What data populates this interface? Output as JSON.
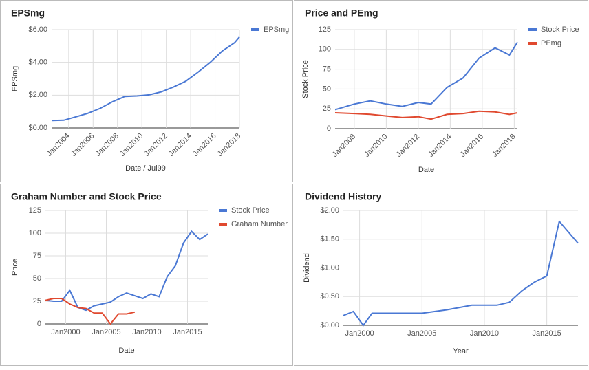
{
  "chart_data": [
    {
      "type": "line",
      "title": "EPSmg",
      "ylabel": "EPSmg",
      "xlabel": "Date / Jul99",
      "grid": true,
      "legend": "right",
      "xlim": [
        2002.6,
        2018
      ],
      "ylim": [
        0,
        6
      ],
      "xticks": [
        {
          "value": 2004,
          "label": "Jan2004"
        },
        {
          "value": 2006,
          "label": "Jan2006"
        },
        {
          "value": 2008,
          "label": "Jan2008"
        },
        {
          "value": 2010,
          "label": "Jan2010"
        },
        {
          "value": 2012,
          "label": "Jan2012"
        },
        {
          "value": 2014,
          "label": "Jan2014"
        },
        {
          "value": 2016,
          "label": "Jan2016"
        },
        {
          "value": 2018,
          "label": "Jan2018"
        }
      ],
      "yticks": [
        {
          "value": 0,
          "label": "$0.00"
        },
        {
          "value": 2,
          "label": "$2.00"
        },
        {
          "value": 4,
          "label": "$4.00"
        },
        {
          "value": 6,
          "label": "$6.00"
        }
      ],
      "series": [
        {
          "name": "EPSmg",
          "color": "#4a78d4",
          "x": [
            2002.6,
            2003.6,
            2004.6,
            2005.6,
            2006.6,
            2007.6,
            2008.6,
            2009.6,
            2010.6,
            2011.6,
            2012.6,
            2013.6,
            2014.6,
            2015.6,
            2016.6,
            2017.6,
            2018
          ],
          "values": [
            0.45,
            0.47,
            0.68,
            0.9,
            1.2,
            1.6,
            1.92,
            1.95,
            2.02,
            2.2,
            2.5,
            2.85,
            3.4,
            4.0,
            4.7,
            5.2,
            5.55
          ]
        }
      ]
    },
    {
      "type": "line",
      "title": "Price and PEmg",
      "ylabel": "Stock Price",
      "xlabel": "Date",
      "grid": true,
      "legend": "right",
      "xlim": [
        2006.8,
        2018.2
      ],
      "ylim": [
        0,
        125
      ],
      "xticks": [
        {
          "value": 2008,
          "label": "Jan2008"
        },
        {
          "value": 2010,
          "label": "Jan2010"
        },
        {
          "value": 2012,
          "label": "Jan2012"
        },
        {
          "value": 2014,
          "label": "Jan2014"
        },
        {
          "value": 2016,
          "label": "Jan2016"
        },
        {
          "value": 2018,
          "label": "Jan2018"
        }
      ],
      "yticks": [
        0,
        25,
        50,
        75,
        100,
        125
      ],
      "series": [
        {
          "name": "Stock Price",
          "color": "#4a78d4",
          "x": [
            2006.8,
            2008,
            2009,
            2010,
            2011,
            2012,
            2012.8,
            2013.8,
            2014.8,
            2015.8,
            2016.8,
            2017.7,
            2018.2
          ],
          "values": [
            24,
            31,
            35,
            31,
            28,
            33,
            31,
            52,
            64,
            89,
            102,
            93,
            109
          ]
        },
        {
          "name": "PEmg",
          "color": "#e0492f",
          "x": [
            2006.8,
            2008,
            2009,
            2010,
            2011,
            2012,
            2012.8,
            2013.8,
            2014.8,
            2015.8,
            2016.8,
            2017.7,
            2018.2
          ],
          "values": [
            20,
            19,
            18,
            16,
            14,
            15,
            12,
            18,
            19,
            22,
            21,
            18,
            20
          ]
        }
      ]
    },
    {
      "type": "line",
      "title": "Graham Number and Stock Price",
      "ylabel": "Price",
      "xlabel": "Date",
      "grid": true,
      "legend": "right",
      "xlim": [
        1997.5,
        2017.5
      ],
      "ylim": [
        0,
        125
      ],
      "xticks": [
        {
          "value": 2000,
          "label": "Jan2000"
        },
        {
          "value": 2005,
          "label": "Jan2005"
        },
        {
          "value": 2010,
          "label": "Jan2010"
        },
        {
          "value": 2015,
          "label": "Jan2015"
        }
      ],
      "yticks": [
        0,
        25,
        50,
        75,
        100,
        125
      ],
      "series": [
        {
          "name": "Stock Price",
          "color": "#4a78d4",
          "x": [
            1997.5,
            1998.5,
            1999.5,
            2000.5,
            2001.5,
            2002.5,
            2003.5,
            2004.5,
            2005.5,
            2006.5,
            2007.5,
            2008.5,
            2009.5,
            2010.5,
            2011.5,
            2012.5,
            2013.5,
            2014.5,
            2015.5,
            2016.5,
            2017.5
          ],
          "values": [
            26,
            25,
            25,
            37,
            18,
            15,
            20,
            22,
            24,
            30,
            34,
            31,
            28,
            33,
            30,
            52,
            64,
            89,
            102,
            93,
            99
          ]
        },
        {
          "name": "Graham Number",
          "color": "#e0492f",
          "x": [
            1997.5,
            1998.5,
            1999.5,
            2000.5,
            2001.5,
            2002.5,
            2003.5,
            2004.5,
            2005.5,
            2006.5,
            2007.5,
            2008.5
          ],
          "values": [
            26,
            28,
            28,
            22,
            18,
            17,
            12,
            12,
            0,
            11,
            11,
            13
          ]
        }
      ]
    },
    {
      "type": "line",
      "title": "Dividend History",
      "ylabel": "Dividend",
      "xlabel": "Year",
      "grid": true,
      "xlim": [
        1998.7,
        2017.5
      ],
      "ylim": [
        0,
        2
      ],
      "xticks": [
        {
          "value": 2000,
          "label": "Jan2000"
        },
        {
          "value": 2005,
          "label": "Jan2005"
        },
        {
          "value": 2010,
          "label": "Jan2010"
        },
        {
          "value": 2015,
          "label": "Jan2015"
        }
      ],
      "yticks": [
        {
          "value": 0,
          "label": "$0.00"
        },
        {
          "value": 0.5,
          "label": "$0.50"
        },
        {
          "value": 1,
          "label": "$1.00"
        },
        {
          "value": 1.5,
          "label": "$1.50"
        },
        {
          "value": 2,
          "label": "$2.00"
        }
      ],
      "series": [
        {
          "color": "#4a78d4",
          "x": [
            1998.7,
            1999.5,
            2000.3,
            2001,
            2002,
            2003,
            2004,
            2005,
            2006,
            2007,
            2008,
            2009,
            2010,
            2011,
            2012,
            2013,
            2014,
            2015,
            2016,
            2017.5
          ],
          "values": [
            0.17,
            0.24,
            0,
            0.21,
            0.21,
            0.21,
            0.21,
            0.21,
            0.24,
            0.27,
            0.31,
            0.35,
            0.35,
            0.35,
            0.4,
            0.6,
            0.75,
            0.86,
            1.81,
            1.43
          ]
        }
      ]
    }
  ]
}
